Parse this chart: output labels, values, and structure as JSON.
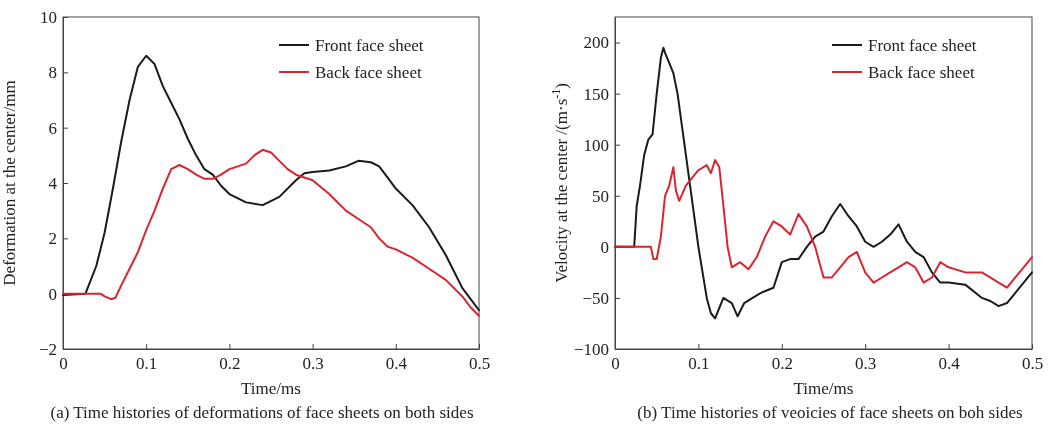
{
  "chart_data": [
    {
      "type": "line",
      "xlabel": "Time/ms",
      "ylabel": "Deformation at the center/mm",
      "annotations": [
        "(a) Time histories of deformations of face sheets on both sides"
      ],
      "xlim": [
        0,
        0.5
      ],
      "ylim": [
        -2,
        10
      ],
      "xticks": [
        0,
        0.1,
        0.2,
        0.3,
        0.4,
        0.5
      ],
      "yticks": [
        -2,
        0,
        2,
        4,
        6,
        8,
        10
      ],
      "grid": false,
      "legend": "top right",
      "line_style": "solid",
      "marker": "none",
      "series": [
        {
          "name": "Front face sheet",
          "color": "#1a1a1a",
          "x": [
            0,
            0.027,
            0.04,
            0.05,
            0.06,
            0.07,
            0.08,
            0.09,
            0.1,
            0.11,
            0.12,
            0.13,
            0.14,
            0.15,
            0.16,
            0.17,
            0.18,
            0.19,
            0.2,
            0.22,
            0.24,
            0.26,
            0.28,
            0.29,
            0.3,
            0.32,
            0.34,
            0.355,
            0.37,
            0.38,
            0.39,
            0.4,
            0.42,
            0.44,
            0.46,
            0.47,
            0.48,
            0.49,
            0.5
          ],
          "values": [
            -0.05,
            0,
            1.0,
            2.2,
            3.8,
            5.5,
            7.0,
            8.2,
            8.6,
            8.3,
            7.5,
            6.9,
            6.3,
            5.6,
            5.0,
            4.5,
            4.3,
            3.9,
            3.6,
            3.3,
            3.2,
            3.5,
            4.1,
            4.35,
            4.4,
            4.45,
            4.6,
            4.8,
            4.75,
            4.6,
            4.2,
            3.8,
            3.2,
            2.4,
            1.4,
            0.8,
            0.2,
            -0.2,
            -0.6
          ]
        },
        {
          "name": "Back face sheet",
          "color": "#d9252f",
          "x": [
            0,
            0.045,
            0.05,
            0.058,
            0.063,
            0.07,
            0.08,
            0.09,
            0.1,
            0.11,
            0.12,
            0.13,
            0.14,
            0.15,
            0.16,
            0.17,
            0.18,
            0.19,
            0.2,
            0.22,
            0.23,
            0.24,
            0.25,
            0.26,
            0.27,
            0.28,
            0.3,
            0.32,
            0.34,
            0.36,
            0.37,
            0.38,
            0.39,
            0.4,
            0.42,
            0.44,
            0.46,
            0.48,
            0.49,
            0.5
          ],
          "values": [
            0,
            0,
            -0.1,
            -0.2,
            -0.15,
            0.3,
            0.9,
            1.5,
            2.3,
            3.0,
            3.8,
            4.5,
            4.65,
            4.5,
            4.3,
            4.15,
            4.15,
            4.3,
            4.5,
            4.7,
            5.0,
            5.2,
            5.1,
            4.8,
            4.5,
            4.3,
            4.1,
            3.6,
            3.0,
            2.6,
            2.4,
            2.0,
            1.7,
            1.6,
            1.3,
            0.9,
            0.5,
            -0.1,
            -0.5,
            -0.8
          ]
        }
      ]
    },
    {
      "type": "line",
      "xlabel": "Time/ms",
      "ylabel": "Velocity at the center /(m·s$^{-1}$)",
      "annotations": [
        "(b) Time histories of veoicies of face sheets on boh sides"
      ],
      "xlim": [
        0,
        0.5
      ],
      "ylim": [
        -100,
        225
      ],
      "xticks": [
        0,
        0.1,
        0.2,
        0.3,
        0.4,
        0.5
      ],
      "yticks": [
        -100,
        -50,
        0,
        50,
        100,
        150,
        200
      ],
      "grid": false,
      "legend": "top right",
      "line_style": "solid",
      "marker": "none",
      "series": [
        {
          "name": "Front face sheet",
          "color": "#1a1a1a",
          "x": [
            0,
            0.023,
            0.026,
            0.03,
            0.035,
            0.04,
            0.045,
            0.05,
            0.055,
            0.058,
            0.06,
            0.065,
            0.07,
            0.075,
            0.08,
            0.085,
            0.09,
            0.095,
            0.1,
            0.105,
            0.11,
            0.115,
            0.12,
            0.125,
            0.13,
            0.14,
            0.147,
            0.155,
            0.165,
            0.175,
            0.19,
            0.2,
            0.21,
            0.22,
            0.23,
            0.24,
            0.25,
            0.26,
            0.27,
            0.28,
            0.29,
            0.3,
            0.31,
            0.32,
            0.33,
            0.34,
            0.35,
            0.36,
            0.37,
            0.38,
            0.39,
            0.4,
            0.42,
            0.44,
            0.45,
            0.46,
            0.47,
            0.48,
            0.49,
            0.5
          ],
          "values": [
            0,
            0,
            40,
            60,
            90,
            105,
            110,
            150,
            185,
            195,
            190,
            180,
            170,
            150,
            120,
            90,
            60,
            30,
            0,
            -25,
            -50,
            -65,
            -70,
            -60,
            -50,
            -55,
            -68,
            -55,
            -50,
            -45,
            -40,
            -15,
            -12,
            -12,
            0,
            10,
            15,
            30,
            42,
            30,
            20,
            5,
            0,
            5,
            12,
            22,
            5,
            -5,
            -10,
            -25,
            -35,
            -35,
            -37,
            -50,
            -53,
            -58,
            -55,
            -45,
            -35,
            -25
          ]
        },
        {
          "name": "Back face sheet",
          "color": "#d9252f",
          "x": [
            0,
            0.043,
            0.046,
            0.05,
            0.055,
            0.06,
            0.065,
            0.07,
            0.073,
            0.077,
            0.085,
            0.09,
            0.1,
            0.11,
            0.115,
            0.12,
            0.125,
            0.13,
            0.135,
            0.14,
            0.15,
            0.16,
            0.17,
            0.18,
            0.19,
            0.2,
            0.21,
            0.22,
            0.23,
            0.24,
            0.25,
            0.26,
            0.27,
            0.28,
            0.29,
            0.3,
            0.31,
            0.32,
            0.33,
            0.34,
            0.35,
            0.36,
            0.37,
            0.38,
            0.39,
            0.4,
            0.42,
            0.44,
            0.46,
            0.47,
            0.48,
            0.49,
            0.5
          ],
          "values": [
            0,
            0,
            -12,
            -12,
            10,
            50,
            60,
            78,
            55,
            45,
            60,
            65,
            75,
            80,
            72,
            85,
            78,
            40,
            0,
            -20,
            -15,
            -22,
            -10,
            10,
            25,
            20,
            12,
            32,
            20,
            0,
            -30,
            -30,
            -20,
            -10,
            -5,
            -25,
            -35,
            -30,
            -25,
            -20,
            -15,
            -20,
            -35,
            -30,
            -15,
            -20,
            -25,
            -25,
            -35,
            -40,
            -30,
            -20,
            -10
          ]
        }
      ]
    }
  ]
}
